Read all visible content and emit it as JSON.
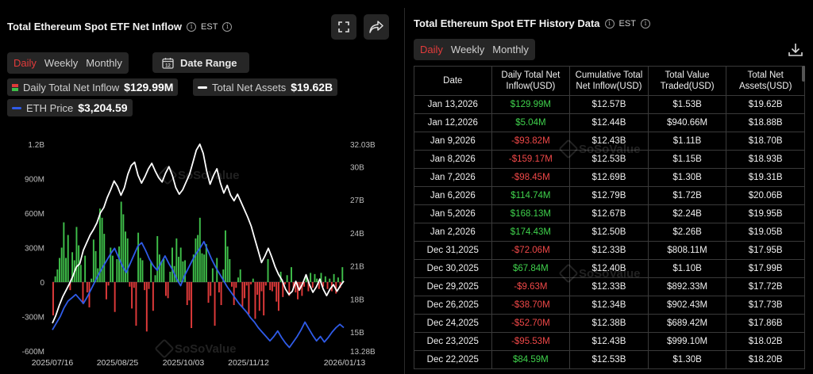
{
  "left": {
    "title": "Total Ethereum Spot ETF Net Inflow",
    "timezone": "EST",
    "tabs": [
      "Daily",
      "Weekly",
      "Monthly"
    ],
    "active_tab": "Daily",
    "date_range_label": "Date Range",
    "date_range_icon_text": "12",
    "legend": {
      "inflow_label": "Daily Total Net Inflow",
      "inflow_value": "$129.99M",
      "assets_label": "Total Net Assets",
      "assets_value": "$19.62B",
      "price_label": "ETH Price",
      "price_value": "$3,204.59"
    },
    "watermark": "SoSoValue",
    "colors": {
      "positive": "#3fbf4a",
      "negative": "#e03a3a",
      "assets_line": "#ffffff",
      "price_line": "#2f5be8",
      "accent": "#e23b3b"
    }
  },
  "chart_data": {
    "type": "bar",
    "x_ticks": [
      "2025/07/16",
      "2025/08/25",
      "2025/10/03",
      "2025/11/12",
      "2026/01/13"
    ],
    "y_left_ticks": [
      "1.2B",
      "900M",
      "600M",
      "300M",
      "0",
      "-300M",
      "-600M"
    ],
    "y_left_range": [
      -600,
      1200
    ],
    "y_left_unit": "M",
    "y_right_ticks": [
      "32.03B",
      "30B",
      "27B",
      "24B",
      "21B",
      "18B",
      "15B",
      "13.28B"
    ],
    "y_right_range": [
      13.28,
      32.03
    ],
    "series": [
      {
        "name": "Daily Total Net Inflow",
        "kind": "bar",
        "values": [
          -290,
          50,
          110,
          210,
          300,
          520,
          210,
          410,
          -70,
          260,
          190,
          480,
          320,
          150,
          -190,
          230,
          -90,
          -220,
          30,
          370,
          270,
          120,
          640,
          560,
          420,
          -150,
          -30,
          300,
          230,
          -260,
          200,
          310,
          700,
          590,
          440,
          380,
          -40,
          -230,
          -50,
          -380,
          430,
          210,
          190,
          -70,
          -430,
          -60,
          180,
          -250,
          60,
          400,
          240,
          180,
          200,
          -120,
          -140,
          90,
          300,
          140,
          380,
          220,
          300,
          180,
          190,
          -200,
          -160,
          -400,
          240,
          380,
          410,
          560,
          250,
          240,
          330,
          -180,
          -120,
          120,
          -380,
          210,
          -90,
          -200,
          110,
          450,
          310,
          200,
          -40,
          -200,
          -50,
          40,
          110,
          -220,
          -140,
          -30,
          -280,
          -20,
          30,
          -320,
          -110,
          -250,
          -80,
          -290,
          -30,
          200,
          -70,
          -80,
          -40,
          -170,
          -250,
          90,
          -130,
          -20,
          60,
          -120,
          130,
          -50,
          -90,
          -150,
          -60,
          -120,
          -40,
          60,
          -80,
          80,
          -50,
          70,
          30,
          -60,
          80,
          -40,
          50,
          -60,
          30,
          -80,
          70,
          -100,
          40,
          -50,
          130
        ]
      },
      {
        "name": "Total Net Assets",
        "kind": "line",
        "axis": "right",
        "values": [
          15.8,
          16.5,
          17.4,
          18.2,
          18.8,
          19.4,
          20.1,
          20.9,
          21.2,
          22.4,
          23.1,
          23.8,
          24.3,
          24.9,
          25.8,
          26.3,
          27.2,
          27.9,
          28.7,
          28.2,
          27.4,
          28.1,
          29.3,
          30.1,
          30.4,
          29.2,
          28.5,
          29.1,
          29.8,
          30.3,
          29.6,
          29.0,
          28.6,
          29.4,
          30.0,
          29.2,
          28.1,
          27.5,
          27.9,
          28.6,
          29.3,
          30.4,
          31.5,
          32.03,
          31.2,
          29.6,
          28.4,
          29.2,
          29.8,
          28.5,
          27.6,
          28.3,
          27.4,
          26.9,
          27.5,
          26.8,
          26.1,
          25.4,
          24.6,
          23.5,
          22.4,
          21.3,
          21.9,
          22.6,
          21.8,
          20.9,
          20.2,
          19.7,
          18.9,
          18.4,
          18.7,
          19.6,
          18.8,
          19.4,
          20.2,
          19.3,
          18.6,
          19.1,
          19.8,
          18.9,
          18.3,
          18.9,
          19.3,
          18.7,
          19.2,
          19.62
        ]
      },
      {
        "name": "ETH Price",
        "kind": "line",
        "axis": "right",
        "values": [
          15.2,
          15.8,
          16.4,
          17.2,
          17.8,
          18.1,
          18.4,
          18.0,
          17.6,
          18.2,
          18.9,
          19.6,
          20.3,
          20.9,
          21.5,
          22.1,
          22.6,
          21.8,
          21.0,
          20.4,
          21.2,
          22.0,
          22.8,
          23.1,
          22.4,
          21.6,
          21.0,
          20.6,
          21.3,
          21.9,
          21.2,
          20.6,
          19.8,
          19.2,
          20.1,
          20.8,
          21.5,
          22.1,
          22.6,
          23.2,
          22.4,
          21.6,
          20.9,
          20.3,
          19.7,
          19.1,
          18.6,
          18.1,
          17.6,
          17.2,
          16.8,
          16.3,
          15.9,
          15.4,
          15.0,
          14.6,
          14.2,
          14.6,
          15.1,
          14.5,
          14.0,
          13.6,
          14.1,
          14.6,
          15.2,
          15.9,
          15.3,
          14.7,
          14.2,
          14.6,
          14.1,
          14.5,
          15.0,
          15.4,
          15.7,
          15.4
        ]
      }
    ]
  },
  "right": {
    "title": "Total Ethereum Spot ETF History Data",
    "timezone": "EST",
    "tabs": [
      "Daily",
      "Weekly",
      "Monthly"
    ],
    "active_tab": "Daily",
    "watermark": "SoSoValue",
    "columns": [
      "Date",
      "Daily Total Net Inflow(USD)",
      "Cumulative Total Net Inflow(USD)",
      "Total Value Traded(USD)",
      "Total Net Assets(USD)"
    ],
    "rows": [
      [
        "Jan 13,2026",
        "$129.99M",
        "$12.57B",
        "$1.53B",
        "$19.62B",
        "pos"
      ],
      [
        "Jan 12,2026",
        "$5.04M",
        "$12.44B",
        "$940.66M",
        "$18.88B",
        "pos"
      ],
      [
        "Jan 9,2026",
        "-$93.82M",
        "$12.43B",
        "$1.11B",
        "$18.70B",
        "neg"
      ],
      [
        "Jan 8,2026",
        "-$159.17M",
        "$12.53B",
        "$1.15B",
        "$18.93B",
        "neg"
      ],
      [
        "Jan 7,2026",
        "-$98.45M",
        "$12.69B",
        "$1.30B",
        "$19.31B",
        "neg"
      ],
      [
        "Jan 6,2026",
        "$114.74M",
        "$12.79B",
        "$1.72B",
        "$20.06B",
        "pos"
      ],
      [
        "Jan 5,2026",
        "$168.13M",
        "$12.67B",
        "$2.24B",
        "$19.95B",
        "pos"
      ],
      [
        "Jan 2,2026",
        "$174.43M",
        "$12.50B",
        "$2.26B",
        "$19.05B",
        "pos"
      ],
      [
        "Dec 31,2025",
        "-$72.06M",
        "$12.33B",
        "$808.11M",
        "$17.95B",
        "neg"
      ],
      [
        "Dec 30,2025",
        "$67.84M",
        "$12.40B",
        "$1.10B",
        "$17.99B",
        "pos"
      ],
      [
        "Dec 29,2025",
        "-$9.63M",
        "$12.33B",
        "$892.33M",
        "$17.72B",
        "neg"
      ],
      [
        "Dec 26,2025",
        "-$38.70M",
        "$12.34B",
        "$902.43M",
        "$17.73B",
        "neg"
      ],
      [
        "Dec 24,2025",
        "-$52.70M",
        "$12.38B",
        "$689.42M",
        "$17.86B",
        "neg"
      ],
      [
        "Dec 23,2025",
        "-$95.53M",
        "$12.43B",
        "$999.10M",
        "$18.02B",
        "neg"
      ],
      [
        "Dec 22,2025",
        "$84.59M",
        "$12.53B",
        "$1.30B",
        "$18.20B",
        "pos"
      ]
    ]
  }
}
